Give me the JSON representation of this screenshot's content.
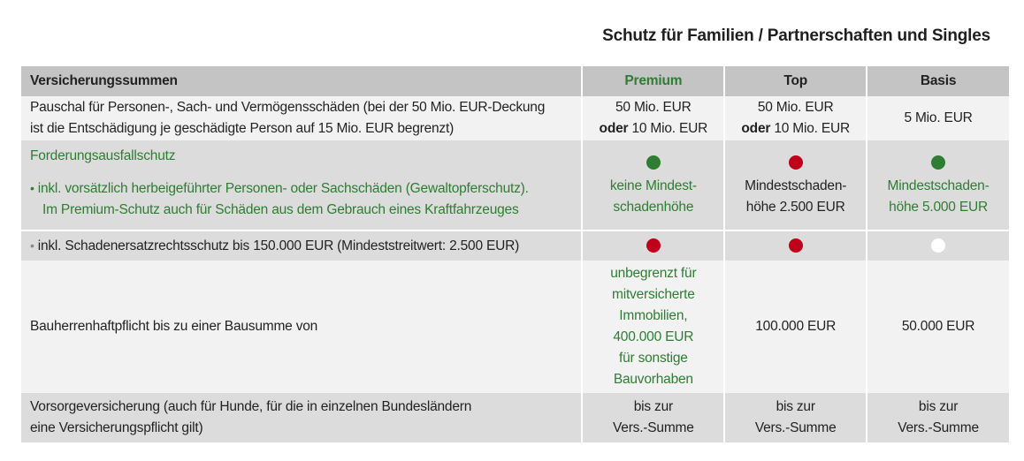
{
  "title": "Schutz für Familien / Partnerschaften und Singles",
  "header": {
    "label": "Versicherungssummen",
    "plans": [
      "Premium",
      "Top",
      "Basis"
    ]
  },
  "rows": {
    "pauschal": {
      "desc_line1": "Pauschal für Personen-, Sach- und Vermögensschäden (bei der 50 Mio. EUR-Deckung",
      "desc_line2": "ist die Entschädigung je geschädigte Person auf 15 Mio. EUR begrenzt)",
      "premium_line1": "50 Mio. EUR",
      "premium_oder": "oder",
      "premium_line2": "10 Mio. EUR",
      "top_line1": "50 Mio. EUR",
      "top_oder": "oder",
      "top_line2": "10 Mio. EUR",
      "basis": "5 Mio. EUR"
    },
    "forderung": {
      "title": "Forderungsausfallschutz",
      "bullet": "•",
      "desc_line1": "inkl. vorsätzlich herbeigeführter Personen- oder Sachschäden (Gewaltopferschutz).",
      "desc_line2": "Im Premium-Schutz auch für Schäden aus dem Gebrauch eines Kraftfahrzeuges",
      "premium_line1": "keine Mindest-",
      "premium_line2": "schadenhöhe",
      "premium_status": "green",
      "top_line1": "Mindestschaden-",
      "top_line2": "höhe 2.500 EUR",
      "top_status": "red",
      "basis_line1": "Mindestschaden-",
      "basis_line2": "höhe 5.000 EUR",
      "basis_status": "green"
    },
    "schadenersatz": {
      "bullet": "•",
      "desc": "inkl. Schadenersatzrechtsschutz bis 150.000 EUR (Mindeststreitwert: 2.500 EUR)",
      "premium_status": "red",
      "top_status": "red",
      "basis_status": "white"
    },
    "bauherren": {
      "desc": "Bauherrenhaftpflicht bis zu einer Bausumme von",
      "premium_lines": [
        "unbegrenzt für",
        "mitversicherte",
        "Immobilien,",
        "400.000 EUR",
        "für sonstige",
        "Bauvorhaben"
      ],
      "top": "100.000 EUR",
      "basis": "50.000 EUR"
    },
    "vorsorge": {
      "desc_line1": "Vorsorgeversicherung (auch für Hunde, für die in einzelnen Bundesländern",
      "desc_line2": "eine Versicherungspflicht gilt)",
      "premium_line1": "bis zur",
      "premium_line2": "Vers.-Summe",
      "top_line1": "bis zur",
      "top_line2": "Vers.-Summe",
      "basis_line1": "bis zur",
      "basis_line2": "Vers.-Summe"
    }
  },
  "colors": {
    "accent_green": "#2e7d32",
    "status_red": "#c0001a",
    "header_grey": "#c4c4c4",
    "row_dark": "#dcdcdc",
    "row_light": "#f2f2f2"
  }
}
